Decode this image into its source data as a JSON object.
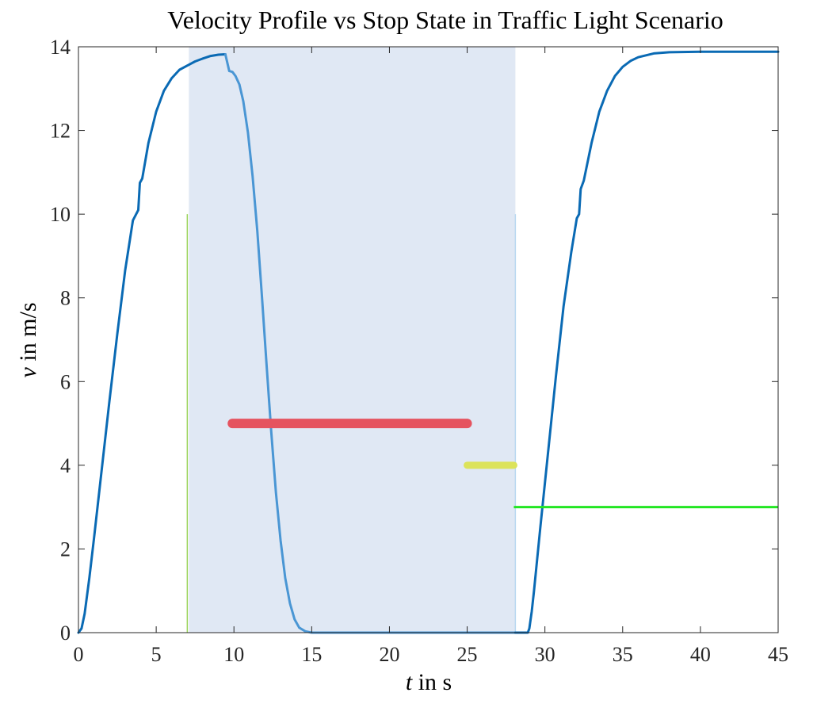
{
  "chart_data": {
    "type": "line",
    "title": "Velocity Profile vs Stop State in Traffic Light Scenario",
    "xlabel": {
      "var": "t",
      "unit": " in s"
    },
    "ylabel": {
      "var": "v",
      "unit": " in m/s"
    },
    "xlim": [
      0,
      45
    ],
    "ylim": [
      0,
      14
    ],
    "xticks": [
      0,
      5,
      10,
      15,
      20,
      25,
      30,
      35,
      40,
      45
    ],
    "yticks": [
      0,
      2,
      4,
      6,
      8,
      10,
      12,
      14
    ],
    "grid": false,
    "legend": "none",
    "shaded_region": {
      "x": [
        7.1,
        28.1
      ],
      "color": "#e0e8f4"
    },
    "vertical_markers": [
      {
        "x": 7.0,
        "y": [
          0,
          10
        ],
        "color": "#9bd35a"
      },
      {
        "x": 28.1,
        "y": [
          0,
          10
        ],
        "color": "#b8d8f0"
      }
    ],
    "series": [
      {
        "color": "#0a6ab4",
        "points": [
          [
            0,
            0
          ],
          [
            0.2,
            0.1
          ],
          [
            0.4,
            0.45
          ],
          [
            0.7,
            1.3
          ],
          [
            1.0,
            2.25
          ],
          [
            1.5,
            3.9
          ],
          [
            2.0,
            5.55
          ],
          [
            2.5,
            7.15
          ],
          [
            3.0,
            8.65
          ],
          [
            3.5,
            9.85
          ],
          [
            3.85,
            10.1
          ],
          [
            3.95,
            10.75
          ],
          [
            4.1,
            10.85
          ],
          [
            4.5,
            11.7
          ],
          [
            5.0,
            12.45
          ],
          [
            5.5,
            12.95
          ],
          [
            6.0,
            13.25
          ],
          [
            6.5,
            13.45
          ],
          [
            7.1,
            13.57
          ],
          [
            7.5,
            13.65
          ],
          [
            8.0,
            13.72
          ],
          [
            8.5,
            13.78
          ],
          [
            9.0,
            13.81
          ],
          [
            9.45,
            13.82
          ]
        ]
      },
      {
        "color": "#4a96d4",
        "points": [
          [
            9.45,
            13.82
          ],
          [
            9.7,
            13.42
          ],
          [
            9.9,
            13.4
          ],
          [
            10.1,
            13.3
          ],
          [
            10.35,
            13.1
          ],
          [
            10.6,
            12.7
          ],
          [
            10.9,
            11.95
          ],
          [
            11.2,
            10.9
          ],
          [
            11.5,
            9.6
          ],
          [
            11.8,
            8.05
          ],
          [
            12.1,
            6.4
          ],
          [
            12.4,
            4.8
          ],
          [
            12.7,
            3.35
          ],
          [
            13.0,
            2.2
          ],
          [
            13.3,
            1.3
          ],
          [
            13.6,
            0.7
          ],
          [
            13.9,
            0.32
          ],
          [
            14.2,
            0.12
          ],
          [
            14.6,
            0.03
          ],
          [
            15.0,
            0.0
          ],
          [
            28.1,
            0.0
          ]
        ]
      },
      {
        "color": "#0a6ab4",
        "points": [
          [
            28.1,
            0.0
          ],
          [
            28.9,
            0.0
          ],
          [
            29.0,
            0.1
          ],
          [
            29.15,
            0.5
          ],
          [
            29.3,
            1.0
          ],
          [
            29.7,
            2.5
          ],
          [
            30.2,
            4.3
          ],
          [
            30.7,
            6.1
          ],
          [
            31.2,
            7.8
          ],
          [
            31.7,
            9.1
          ],
          [
            32.05,
            9.9
          ],
          [
            32.2,
            10.0
          ],
          [
            32.3,
            10.6
          ],
          [
            32.5,
            10.8
          ],
          [
            33.0,
            11.7
          ],
          [
            33.5,
            12.45
          ],
          [
            34.0,
            12.95
          ],
          [
            34.5,
            13.3
          ],
          [
            35.0,
            13.52
          ],
          [
            35.5,
            13.66
          ],
          [
            36.0,
            13.75
          ],
          [
            37.0,
            13.84
          ],
          [
            38.0,
            13.87
          ],
          [
            40.0,
            13.88
          ],
          [
            45.0,
            13.88
          ]
        ]
      }
    ],
    "state_bars": [
      {
        "x": [
          9.9,
          25.0
        ],
        "y": 5,
        "color": "#e5535f"
      },
      {
        "x": [
          25.0,
          28.0
        ],
        "y": 4,
        "color": "#dce35a"
      },
      {
        "x": [
          28.0,
          45.0
        ],
        "y": 3,
        "color": "#22e622"
      }
    ]
  }
}
